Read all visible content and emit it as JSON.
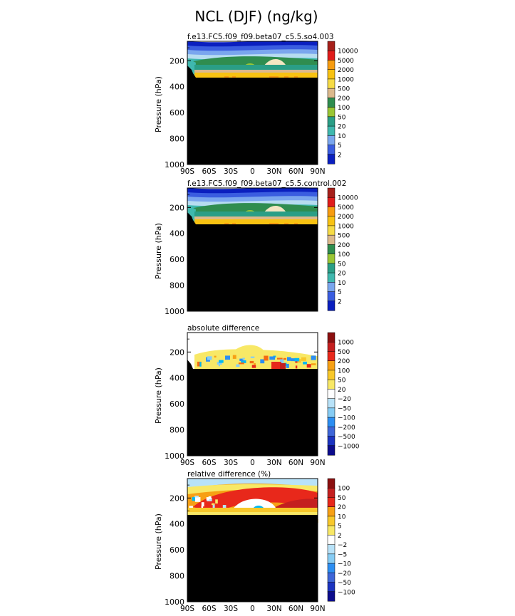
{
  "figure_title": "NCL (DJF) (ng/kg)",
  "colors": {
    "abs_scale": [
      "#0a1fbf",
      "#3a5de0",
      "#7aa6ee",
      "#b6dcf0",
      "#3fb8ae",
      "#2a9e86",
      "#9ac634",
      "#2f8d4f",
      "#f4e6c2",
      "#dcb98c",
      "#f6db46",
      "#f8c212",
      "#f79c10",
      "#f35a15",
      "#e01c1b",
      "#a6201b"
    ],
    "diff_scale": [
      "#0c0c8c",
      "#1b33c0",
      "#3e66d8",
      "#2c8ef2",
      "#00b8f2",
      "#86ccf4",
      "#b8e2f8",
      "#ffffff",
      "#f8e866",
      "#f8c82a",
      "#f7a014",
      "#f56a12",
      "#e8281b",
      "#c41f1f",
      "#8b1010"
    ],
    "mask": "#000000"
  },
  "chart_data": [
    {
      "type": "contour",
      "title": "f.e13.FC5.f09_f09.beta07_c5.5.so4.003",
      "ylabel": "Pressure (hPa)",
      "xlabel": "",
      "x_ticks": [
        "90S",
        "60S",
        "30S",
        "0",
        "30N",
        "60N",
        "90N"
      ],
      "y_ticks": [
        "200",
        "400",
        "600",
        "800",
        "1000"
      ],
      "ylim": [
        1000,
        50
      ],
      "colorbar": [
        "10000",
        "5000",
        "2000",
        "1000",
        "500",
        "200",
        "100",
        "50",
        "20",
        "10",
        "5",
        "2"
      ]
    },
    {
      "type": "contour",
      "title": "f.e13.FC5.f09_f09.beta07_c5.5.control.002",
      "ylabel": "Pressure (hPa)",
      "xlabel": "",
      "x_ticks": [],
      "y_ticks": [
        "200",
        "400",
        "600",
        "800",
        "1000"
      ],
      "ylim": [
        1000,
        50
      ],
      "colorbar": [
        "10000",
        "5000",
        "2000",
        "1000",
        "500",
        "200",
        "100",
        "50",
        "20",
        "10",
        "5",
        "2"
      ]
    },
    {
      "type": "contour",
      "title": "absolute difference",
      "ylabel": "Pressure (hPa)",
      "xlabel": "",
      "x_ticks": [
        "90S",
        "60S",
        "30S",
        "0",
        "30N",
        "60N",
        "90N"
      ],
      "y_ticks": [
        "200",
        "400",
        "600",
        "800",
        "1000"
      ],
      "ylim": [
        1000,
        50
      ],
      "colorbar": [
        "1000",
        "500",
        "200",
        "100",
        "50",
        "20",
        "−20",
        "−50",
        "−100",
        "−200",
        "−500",
        "−1000"
      ]
    },
    {
      "type": "contour",
      "title": "relative difference (%)",
      "ylabel": "Pressure (hPa)",
      "xlabel": "",
      "x_ticks": [
        "90S",
        "60S",
        "30S",
        "0",
        "30N",
        "60N",
        "90N"
      ],
      "y_ticks": [
        "200",
        "400",
        "600",
        "800",
        "1000"
      ],
      "ylim": [
        1000,
        50
      ],
      "colorbar": [
        "100",
        "50",
        "20",
        "10",
        "5",
        "2",
        "−2",
        "−5",
        "−10",
        "−20",
        "−50",
        "−100"
      ]
    }
  ]
}
